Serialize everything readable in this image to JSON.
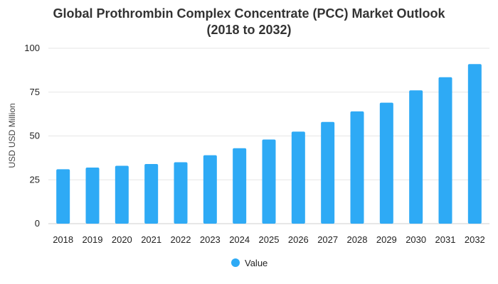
{
  "chart_data": {
    "type": "bar",
    "title_line1": "Global Prothrombin Complex Concentrate (PCC) Market Outlook",
    "title_line2": "(2018 to 2032)",
    "xlabel": "",
    "ylabel": "USD USD Million",
    "categories": [
      "2018",
      "2019",
      "2020",
      "2021",
      "2022",
      "2023",
      "2024",
      "2025",
      "2026",
      "2027",
      "2028",
      "2029",
      "2030",
      "2031",
      "2032"
    ],
    "series": [
      {
        "name": "Value",
        "values": [
          31,
          32,
          33,
          34,
          35,
          39,
          43,
          48,
          52.5,
          58,
          64,
          69,
          76,
          83.5,
          91
        ],
        "color": "#2eaaf5"
      }
    ],
    "ylim": [
      0,
      100
    ],
    "yticks": [
      0,
      25,
      50,
      75,
      100
    ],
    "grid": true,
    "legend_position": "bottom-center"
  }
}
